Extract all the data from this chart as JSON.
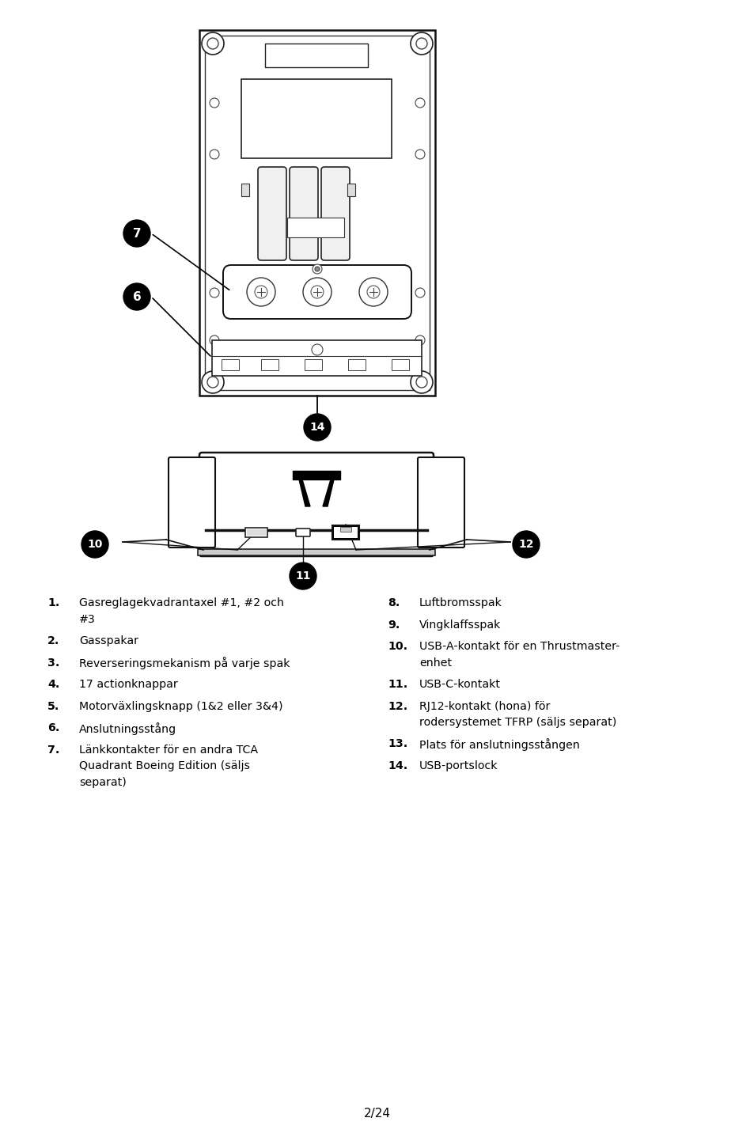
{
  "page_number": "2/24",
  "background_color": "#ffffff",
  "text_color": "#000000",
  "list_items_left": [
    {
      "num": "1.",
      "text": "Gasreglagekvadrantaxel #1, #2 och\n#3"
    },
    {
      "num": "2.",
      "text": "Gasspakar"
    },
    {
      "num": "3.",
      "text": "Reverseringsmekanism på varje spak"
    },
    {
      "num": "4.",
      "text": "17 actionknappar"
    },
    {
      "num": "5.",
      "text": "Motorväxlingsknapp (1&2 eller 3&4)"
    },
    {
      "num": "6.",
      "text": "Anslutningsstång"
    },
    {
      "num": "7.",
      "text": "Länkkontakter för en andra TCA\nQuadrant Boeing Edition (säljs\nseparat)"
    }
  ],
  "list_items_right": [
    {
      "num": "8.",
      "text": "Luftbromsspak"
    },
    {
      "num": "9.",
      "text": "Vingklaffsspak"
    },
    {
      "num": "10.",
      "text": "USB-A-kontakt för en Thrustmaster-\nenhet"
    },
    {
      "num": "11.",
      "text": "USB-C-kontakt"
    },
    {
      "num": "12.",
      "text": "RJ12-kontakt (hona) för\nrodersystemet TFRP (säljs separat)"
    },
    {
      "num": "13.",
      "text": "Plats för anslutningsstången"
    },
    {
      "num": "14.",
      "text": "USB-portslock"
    }
  ]
}
